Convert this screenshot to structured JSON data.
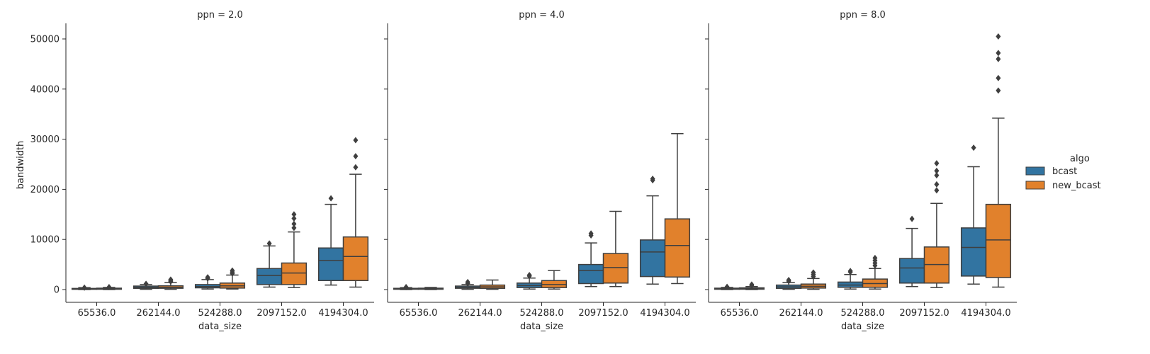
{
  "chart_data": {
    "type": "box",
    "ylabel": "bandwidth",
    "xlabel": "data_size",
    "categories": [
      "65536.0",
      "262144.0",
      "524288.0",
      "2097152.0",
      "4194304.0"
    ],
    "yticks": [
      "0",
      "10000",
      "20000",
      "30000",
      "40000",
      "50000"
    ],
    "ylim": [
      -3000,
      53000
    ],
    "legend": {
      "title": "algo",
      "placement": "right",
      "entries": [
        {
          "name": "bcast",
          "color": "#3274a1"
        },
        {
          "name": "new_bcast",
          "color": "#e1812c"
        }
      ]
    },
    "facets": [
      {
        "title": "ppn = 2.0",
        "boxes": {
          "bcast": [
            {
              "min": 0,
              "q1": 50,
              "median": 130,
              "q3": 230,
              "max": 380,
              "outliers": [
                390
              ]
            },
            {
              "min": 50,
              "q1": 250,
              "median": 450,
              "q3": 700,
              "max": 1000,
              "outliers": [
                1150
              ]
            },
            {
              "min": 100,
              "q1": 350,
              "median": 600,
              "q3": 1000,
              "max": 2000,
              "outliers": [
                2200,
                2450
              ]
            },
            {
              "min": 500,
              "q1": 1000,
              "median": 2800,
              "q3": 4200,
              "max": 8700,
              "outliers": [
                9200
              ]
            },
            {
              "min": 900,
              "q1": 1800,
              "median": 5800,
              "q3": 8300,
              "max": 17000,
              "outliers": [
                18200
              ]
            }
          ],
          "new_bcast": [
            {
              "min": 0,
              "q1": 60,
              "median": 170,
              "q3": 280,
              "max": 420,
              "outliers": [
                500
              ]
            },
            {
              "min": 50,
              "q1": 260,
              "median": 450,
              "q3": 750,
              "max": 1400,
              "outliers": [
                1600,
                1800,
                2000
              ]
            },
            {
              "min": 100,
              "q1": 300,
              "median": 750,
              "q3": 1300,
              "max": 2900,
              "outliers": [
                3200,
                3500,
                3800
              ]
            },
            {
              "min": 400,
              "q1": 1000,
              "median": 3300,
              "q3": 5300,
              "max": 11500,
              "outliers": [
                12300,
                13100,
                14200,
                15000
              ]
            },
            {
              "min": 500,
              "q1": 1800,
              "median": 6600,
              "q3": 10500,
              "max": 23000,
              "outliers": [
                24400,
                26600,
                29800
              ]
            }
          ]
        }
      },
      {
        "title": "ppn = 4.0",
        "boxes": {
          "bcast": [
            {
              "min": 0,
              "q1": 60,
              "median": 150,
              "q3": 250,
              "max": 380,
              "outliers": [
                500
              ]
            },
            {
              "min": 50,
              "q1": 260,
              "median": 450,
              "q3": 700,
              "max": 1000,
              "outliers": [
                1200,
                1500
              ]
            },
            {
              "min": 100,
              "q1": 400,
              "median": 800,
              "q3": 1300,
              "max": 2300,
              "outliers": [
                2700,
                2900
              ]
            },
            {
              "min": 600,
              "q1": 1200,
              "median": 3800,
              "q3": 5000,
              "max": 9300,
              "outliers": [
                10800,
                11200
              ]
            },
            {
              "min": 1100,
              "q1": 2600,
              "median": 7500,
              "q3": 9900,
              "max": 18700,
              "outliers": [
                21800,
                22100
              ]
            }
          ],
          "new_bcast": [
            {
              "min": 0,
              "q1": 60,
              "median": 170,
              "q3": 280,
              "max": 420,
              "outliers": []
            },
            {
              "min": 50,
              "q1": 250,
              "median": 550,
              "q3": 900,
              "max": 1900,
              "outliers": []
            },
            {
              "min": 100,
              "q1": 400,
              "median": 1000,
              "q3": 1800,
              "max": 3800,
              "outliers": []
            },
            {
              "min": 600,
              "q1": 1300,
              "median": 4400,
              "q3": 7200,
              "max": 15600,
              "outliers": []
            },
            {
              "min": 1200,
              "q1": 2500,
              "median": 8800,
              "q3": 14100,
              "max": 31100,
              "outliers": []
            }
          ]
        }
      },
      {
        "title": "ppn = 8.0",
        "boxes": {
          "bcast": [
            {
              "min": 0,
              "q1": 60,
              "median": 150,
              "q3": 280,
              "max": 420,
              "outliers": [
                550
              ]
            },
            {
              "min": 50,
              "q1": 250,
              "median": 550,
              "q3": 900,
              "max": 1400,
              "outliers": [
                1700,
                1900
              ]
            },
            {
              "min": 100,
              "q1": 450,
              "median": 900,
              "q3": 1500,
              "max": 3000,
              "outliers": [
                3500,
                3700
              ]
            },
            {
              "min": 600,
              "q1": 1300,
              "median": 4300,
              "q3": 6200,
              "max": 12200,
              "outliers": [
                14100
              ]
            },
            {
              "min": 1100,
              "q1": 2700,
              "median": 8400,
              "q3": 12300,
              "max": 24500,
              "outliers": [
                28300
              ]
            }
          ],
          "new_bcast": [
            {
              "min": 0,
              "q1": 70,
              "median": 200,
              "q3": 350,
              "max": 600,
              "outliers": [
                800,
                1000
              ]
            },
            {
              "min": 50,
              "q1": 300,
              "median": 650,
              "q3": 1100,
              "max": 2200,
              "outliers": [
                2600,
                3000,
                3400
              ]
            },
            {
              "min": 100,
              "q1": 450,
              "median": 1200,
              "q3": 2100,
              "max": 4200,
              "outliers": [
                4800,
                5300,
                5800,
                6300
              ]
            },
            {
              "min": 400,
              "q1": 1300,
              "median": 5000,
              "q3": 8500,
              "max": 17200,
              "outliers": [
                19800,
                21000,
                22800,
                23700,
                25200
              ]
            },
            {
              "min": 500,
              "q1": 2400,
              "median": 9900,
              "q3": 17000,
              "max": 34200,
              "outliers": [
                39700,
                42200,
                46000,
                47200,
                50500
              ]
            }
          ]
        }
      }
    ]
  }
}
